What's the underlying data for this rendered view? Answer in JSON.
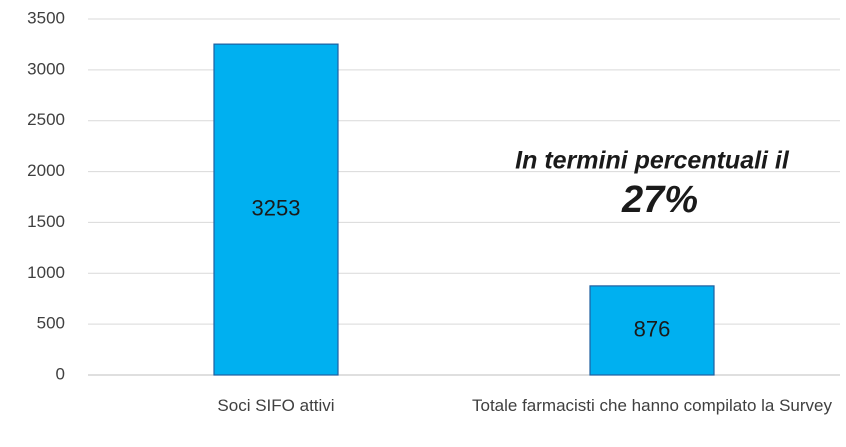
{
  "chart_data": {
    "type": "bar",
    "categories": [
      "Soci SIFO attivi",
      "Totale farmacisti che hanno compilato la Survey"
    ],
    "values": [
      3253,
      876
    ],
    "color": "#00b0f0",
    "ylim": [
      0,
      3500
    ],
    "yticks": [
      0,
      500,
      1000,
      1500,
      2000,
      2500,
      3000,
      3500
    ],
    "grid": true,
    "annotations": [
      "In termini percentuali il",
      "27%"
    ]
  }
}
